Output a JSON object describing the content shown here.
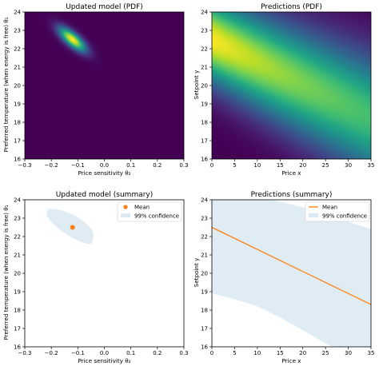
{
  "chart_data": [
    {
      "id": "p1",
      "type": "heatmap",
      "title": "Updated model (PDF)",
      "xlabel": "Price sensitivity θ₂",
      "ylabel": "Preferred temperature (when energy is free) θ₁",
      "xlim": [
        -0.3,
        0.3
      ],
      "ylim": [
        16,
        24
      ],
      "xticks": [
        "−0.3",
        "−0.2",
        "−0.1",
        "0.0",
        "0.1",
        "0.2",
        "0.3"
      ],
      "yticks": [
        "16",
        "17",
        "18",
        "19",
        "20",
        "21",
        "22",
        "23",
        "24"
      ],
      "mean": [
        -0.12,
        22.5
      ],
      "sd": [
        0.035,
        0.45
      ],
      "rho": -0.75,
      "colormap": "viridis"
    },
    {
      "id": "p2",
      "type": "heatmap",
      "title": "Predictions (PDF)",
      "xlabel": "Price x",
      "ylabel": "Setpoint y",
      "xlim": [
        0,
        35
      ],
      "ylim": [
        16,
        24
      ],
      "xticks": [
        "0",
        "5",
        "10",
        "15",
        "20",
        "25",
        "30",
        "35"
      ],
      "yticks": [
        "16",
        "17",
        "18",
        "19",
        "20",
        "21",
        "22",
        "23",
        "24"
      ],
      "line": {
        "intercept": 22.5,
        "slope": -0.12
      },
      "band_sd": [
        1.6,
        2.3
      ],
      "colormap": "viridis"
    },
    {
      "id": "p3",
      "type": "scatter",
      "title": "Updated model (summary)",
      "xlabel": "Price sensitivity θ₂",
      "ylabel": "Preferred temperature (when energy is free) θ₁",
      "xlim": [
        -0.3,
        0.3
      ],
      "ylim": [
        16,
        24
      ],
      "xticks": [
        "−0.3",
        "−0.2",
        "−0.1",
        "0.0",
        "0.1",
        "0.2",
        "0.3"
      ],
      "yticks": [
        "16",
        "17",
        "18",
        "19",
        "20",
        "21",
        "22",
        "23",
        "24"
      ],
      "mean": [
        -0.12,
        22.5
      ],
      "ellipse": [
        [
          -0.205,
          23.5
        ],
        [
          -0.155,
          23.4
        ],
        [
          -0.09,
          22.95
        ],
        [
          -0.045,
          22.3
        ],
        [
          -0.045,
          21.75
        ],
        [
          -0.06,
          21.6
        ],
        [
          -0.11,
          21.85
        ],
        [
          -0.175,
          22.45
        ],
        [
          -0.213,
          23.05
        ],
        [
          -0.215,
          23.35
        ]
      ],
      "legend": [
        {
          "label": "Mean",
          "color": "#ff7f0e"
        },
        {
          "label": "99% confidence",
          "color": "#dbe9f2"
        }
      ],
      "legend_position": "top-right"
    },
    {
      "id": "p4",
      "type": "line",
      "title": "Predictions (summary)",
      "xlabel": "Price x",
      "ylabel": "Setpoint y",
      "xlim": [
        0,
        35
      ],
      "ylim": [
        16,
        24
      ],
      "xticks": [
        "0",
        "5",
        "10",
        "15",
        "20",
        "25",
        "30",
        "35"
      ],
      "yticks": [
        "16",
        "17",
        "18",
        "19",
        "20",
        "21",
        "22",
        "23",
        "24"
      ],
      "mean_line": {
        "x": [
          0,
          35
        ],
        "y": [
          22.5,
          18.3
        ]
      },
      "band_upper": {
        "x": [
          0,
          10,
          20,
          30,
          35
        ],
        "y": [
          24.5,
          24.2,
          23.6,
          22.8,
          22.4
        ]
      },
      "band_lower": {
        "x": [
          0,
          5,
          10,
          15,
          20,
          25,
          30,
          35
        ],
        "y": [
          18.9,
          18.6,
          18.2,
          17.6,
          16.9,
          16.2,
          15.5,
          15.1
        ]
      },
      "legend": [
        {
          "label": "Mean",
          "color": "#ff7f0e"
        },
        {
          "label": "99% confidence",
          "color": "#dbe9f2"
        }
      ],
      "legend_position": "top-right"
    }
  ]
}
